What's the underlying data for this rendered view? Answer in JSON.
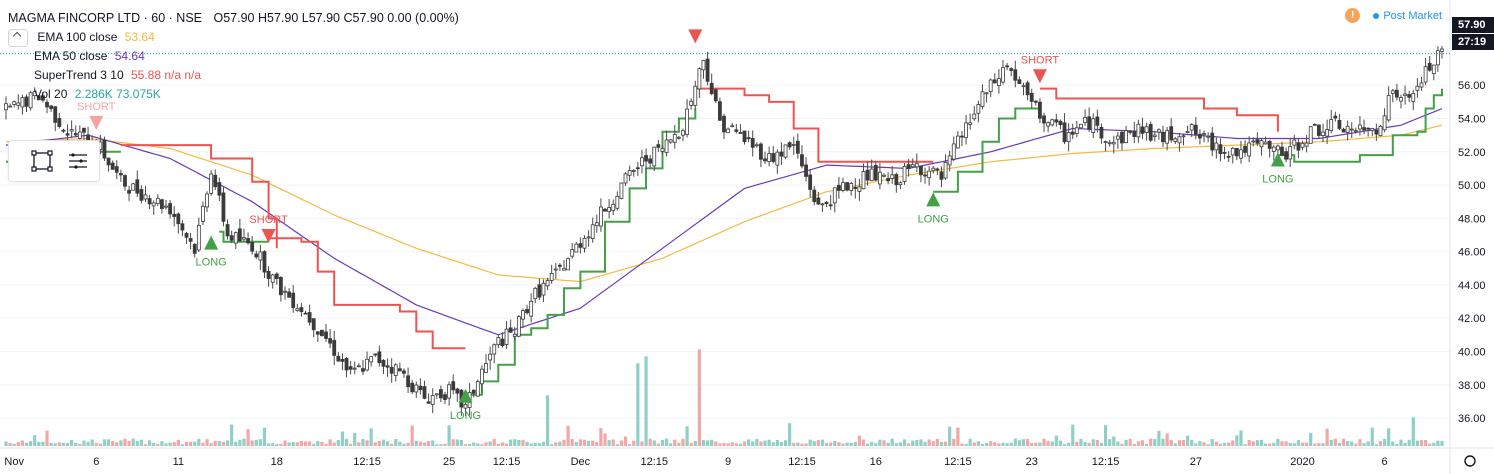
{
  "header": {
    "symbol": "MAGMA FINCORP LTD · 60 · NSE",
    "ohlc": "O57.90  H57.90  L57.90  C57.90  0.00 (0.00%)",
    "status": "Post Market",
    "status_badge": "!"
  },
  "indicators": [
    {
      "name": "EMA 100 close",
      "value": "53.64",
      "color": "#f5b942"
    },
    {
      "name": "EMA 50 close",
      "value": "54.64",
      "color": "#673ab7"
    },
    {
      "name": "SuperTrend 3 10",
      "value": "55.88  n/a  n/a",
      "color": "#ef5350"
    },
    {
      "name": "Vol 20",
      "value": "2.286K  73.075K",
      "color": "#26a69a"
    }
  ],
  "price_tags": [
    {
      "label": "57.90",
      "color": "#131722"
    },
    {
      "label": "27:19",
      "color": "#131722"
    }
  ],
  "colors": {
    "up": "#26a69a",
    "down": "#ef5350",
    "supertrend_up": "#43a047",
    "supertrend_down": "#ef5350",
    "ema100": "#f5b942",
    "ema50": "#673ab7",
    "vol_up": "#8fcfc6",
    "vol_down": "#f2a7a7"
  },
  "toolbox": {
    "icons": [
      "select-box-icon",
      "lines-menu-icon"
    ]
  },
  "chart_data": {
    "type": "candlestick",
    "x_tick_labels": [
      "Nov",
      "6",
      "11",
      "18",
      "12:15",
      "25",
      "12:15",
      "Dec",
      "12:15",
      "9",
      "12:15",
      "16",
      "12:15",
      "23",
      "12:15",
      "27",
      "2020",
      "6"
    ],
    "y_ticks": [
      36,
      38,
      40,
      42,
      44,
      46,
      48,
      50,
      52,
      54,
      56,
      58
    ],
    "y_tick_labels": [
      "36.00",
      "38.00",
      "40.00",
      "42.00",
      "44.00",
      "46.00",
      "48.00",
      "50.00",
      "52.00",
      "54.00",
      "56.00"
    ],
    "ylim": [
      34.2,
      59.8
    ],
    "last_price": 57.9,
    "close_path": [
      [
        0,
        54.5
      ],
      [
        8,
        55.4
      ],
      [
        15,
        53.2
      ],
      [
        22,
        52.6
      ],
      [
        28,
        50.2
      ],
      [
        34,
        49.4
      ],
      [
        40,
        48.6
      ],
      [
        46,
        46.2
      ],
      [
        50,
        51.0
      ],
      [
        54,
        47.0
      ],
      [
        60,
        46.4
      ],
      [
        66,
        44.0
      ],
      [
        72,
        42.6
      ],
      [
        78,
        40.8
      ],
      [
        84,
        38.6
      ],
      [
        90,
        39.6
      ],
      [
        96,
        38.8
      ],
      [
        102,
        37.2
      ],
      [
        108,
        37.6
      ],
      [
        112,
        36.6
      ],
      [
        116,
        38.8
      ],
      [
        120,
        40.6
      ],
      [
        124,
        41.2
      ],
      [
        128,
        43.2
      ],
      [
        134,
        44.6
      ],
      [
        140,
        46.6
      ],
      [
        146,
        48.6
      ],
      [
        152,
        50.6
      ],
      [
        156,
        51.6
      ],
      [
        160,
        52.2
      ],
      [
        165,
        53.6
      ],
      [
        170,
        57.6
      ],
      [
        174,
        53.8
      ],
      [
        180,
        52.8
      ],
      [
        186,
        51.6
      ],
      [
        192,
        52.4
      ],
      [
        198,
        48.6
      ],
      [
        204,
        49.8
      ],
      [
        210,
        50.6
      ],
      [
        216,
        50.2
      ],
      [
        222,
        51.2
      ],
      [
        228,
        50.4
      ],
      [
        232,
        52.6
      ],
      [
        238,
        55.2
      ],
      [
        244,
        57.2
      ],
      [
        248,
        55.6
      ],
      [
        252,
        54.2
      ],
      [
        258,
        53.0
      ],
      [
        264,
        53.8
      ],
      [
        270,
        52.6
      ],
      [
        276,
        53.4
      ],
      [
        282,
        52.8
      ],
      [
        288,
        53.4
      ],
      [
        294,
        52.4
      ],
      [
        300,
        52.0
      ],
      [
        306,
        52.4
      ],
      [
        312,
        51.8
      ],
      [
        318,
        53.2
      ],
      [
        324,
        53.6
      ],
      [
        330,
        53.2
      ],
      [
        334,
        53.4
      ],
      [
        338,
        55.6
      ],
      [
        342,
        55.0
      ],
      [
        346,
        56.8
      ],
      [
        350,
        57.9
      ]
    ],
    "ema100": [
      [
        0,
        52.6
      ],
      [
        20,
        52.8
      ],
      [
        40,
        52.2
      ],
      [
        60,
        50.6
      ],
      [
        80,
        48.2
      ],
      [
        100,
        46.2
      ],
      [
        120,
        44.6
      ],
      [
        140,
        44.2
      ],
      [
        160,
        45.6
      ],
      [
        180,
        47.8
      ],
      [
        200,
        49.6
      ],
      [
        220,
        50.6
      ],
      [
        240,
        51.4
      ],
      [
        260,
        51.9
      ],
      [
        280,
        52.2
      ],
      [
        300,
        52.4
      ],
      [
        320,
        52.6
      ],
      [
        340,
        53.0
      ],
      [
        350,
        53.6
      ]
    ],
    "ema50": [
      [
        0,
        52.4
      ],
      [
        20,
        53.0
      ],
      [
        40,
        51.6
      ],
      [
        60,
        49.0
      ],
      [
        80,
        45.6
      ],
      [
        100,
        42.8
      ],
      [
        120,
        41.0
      ],
      [
        140,
        42.6
      ],
      [
        160,
        46.2
      ],
      [
        180,
        49.8
      ],
      [
        200,
        51.2
      ],
      [
        220,
        51.0
      ],
      [
        240,
        52.0
      ],
      [
        260,
        53.4
      ],
      [
        280,
        53.2
      ],
      [
        300,
        52.8
      ],
      [
        320,
        52.8
      ],
      [
        340,
        53.6
      ],
      [
        350,
        54.6
      ]
    ],
    "supertrend": [
      {
        "trend": "up",
        "points": [
          [
            0,
            51.4
          ],
          [
            10,
            52.0
          ],
          [
            20,
            52.0
          ],
          [
            28,
            52.0
          ]
        ]
      },
      {
        "trend": "down",
        "points": [
          [
            28,
            52.4
          ],
          [
            40,
            52.4
          ],
          [
            50,
            51.6
          ],
          [
            60,
            50.2
          ],
          [
            64,
            48.0
          ],
          [
            66,
            46.2
          ]
        ]
      },
      {
        "trend": "up",
        "points": [
          [
            52,
            47.2
          ],
          [
            53,
            46.6
          ],
          [
            58,
            46.6
          ],
          [
            64,
            46.6
          ]
        ]
      },
      {
        "trend": "down",
        "points": [
          [
            64,
            46.8
          ],
          [
            72,
            46.6
          ],
          [
            76,
            44.8
          ],
          [
            80,
            42.8
          ],
          [
            92,
            42.8
          ],
          [
            96,
            42.4
          ],
          [
            100,
            41.2
          ],
          [
            104,
            40.2
          ],
          [
            112,
            40.2
          ]
        ]
      },
      {
        "trend": "up",
        "points": [
          [
            112,
            37.4
          ],
          [
            116,
            38.2
          ],
          [
            120,
            39.2
          ],
          [
            124,
            41.0
          ],
          [
            128,
            41.4
          ],
          [
            132,
            42.2
          ],
          [
            136,
            43.8
          ],
          [
            140,
            44.8
          ],
          [
            146,
            47.8
          ],
          [
            152,
            49.8
          ],
          [
            156,
            51.0
          ],
          [
            160,
            53.2
          ],
          [
            164,
            54.0
          ],
          [
            168,
            54.6
          ]
        ]
      },
      {
        "trend": "down",
        "points": [
          [
            168,
            55.8
          ],
          [
            176,
            55.8
          ],
          [
            180,
            55.4
          ],
          [
            186,
            55.0
          ],
          [
            192,
            53.4
          ],
          [
            198,
            51.4
          ],
          [
            216,
            51.4
          ],
          [
            226,
            51.4
          ]
        ]
      },
      {
        "trend": "up",
        "points": [
          [
            226,
            49.6
          ],
          [
            232,
            50.8
          ],
          [
            238,
            52.6
          ],
          [
            242,
            54.0
          ],
          [
            246,
            54.6
          ],
          [
            252,
            54.6
          ]
        ]
      },
      {
        "trend": "down",
        "points": [
          [
            252,
            55.8
          ],
          [
            256,
            55.2
          ],
          [
            260,
            55.2
          ],
          [
            288,
            55.2
          ],
          [
            292,
            54.6
          ],
          [
            300,
            54.2
          ],
          [
            310,
            53.2
          ]
        ]
      },
      {
        "trend": "up",
        "points": [
          [
            310,
            51.8
          ],
          [
            314,
            51.4
          ],
          [
            330,
            51.8
          ],
          [
            336,
            51.8
          ],
          [
            338,
            53.0
          ],
          [
            344,
            53.2
          ],
          [
            346,
            54.6
          ],
          [
            348,
            55.4
          ],
          [
            350,
            55.8
          ]
        ]
      }
    ],
    "signals": [
      {
        "type": "SHORT",
        "x": 22,
        "price": 53.8,
        "faded": true
      },
      {
        "type": "LONG",
        "x": 50,
        "price": 46.6
      },
      {
        "type": "SHORT",
        "x": 64,
        "price": 47.0
      },
      {
        "type": "LONG",
        "x": 112,
        "price": 37.4
      },
      {
        "type": "SHORT",
        "x": 168,
        "price": 59.0,
        "arrow_only": true
      },
      {
        "type": "LONG",
        "x": 226,
        "price": 49.2
      },
      {
        "type": "SHORT",
        "x": 252,
        "price": 56.6
      },
      {
        "type": "LONG",
        "x": 310,
        "price": 51.6
      }
    ],
    "volume_spikes": [
      {
        "x": 108,
        "height": 0.18,
        "dir": "up"
      },
      {
        "x": 132,
        "height": 0.44,
        "dir": "up"
      },
      {
        "x": 154,
        "height": 0.72,
        "dir": "up"
      },
      {
        "x": 156,
        "height": 0.78,
        "dir": "up"
      },
      {
        "x": 169,
        "height": 0.84,
        "dir": "down"
      },
      {
        "x": 232,
        "height": 0.16,
        "dir": "down"
      },
      {
        "x": 343,
        "height": 0.25,
        "dir": "up"
      }
    ]
  }
}
